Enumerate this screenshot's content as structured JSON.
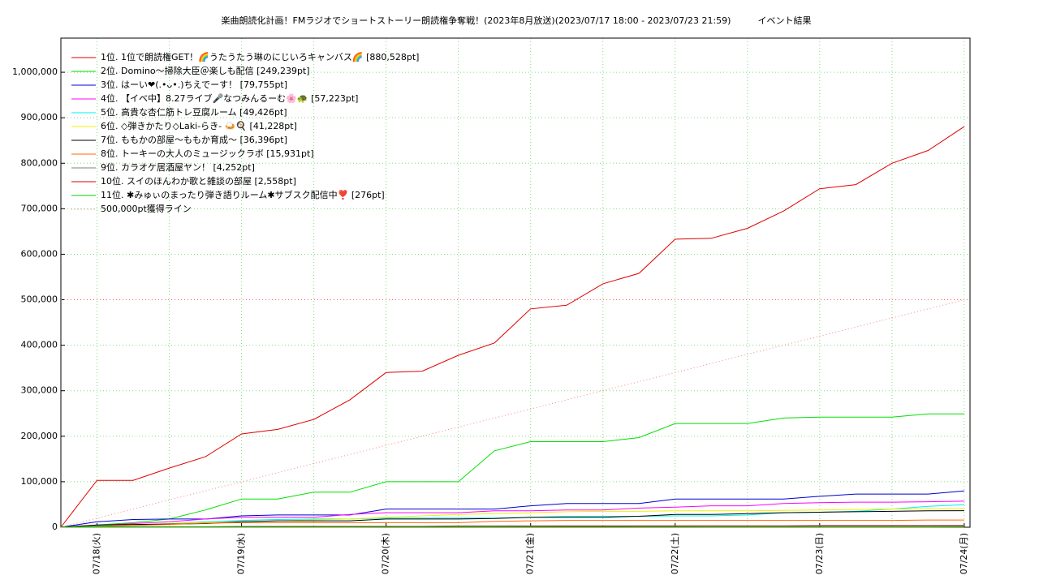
{
  "chart_data": {
    "type": "line",
    "title": "楽曲朗読化計画！FMラジオでショートストーリー朗読権争奪戦！(2023年8月放送)(2023/07/17 18:00 - 2023/07/23 21:59)　　　イベント結果",
    "x": [
      17.75,
      18,
      18.25,
      18.5,
      18.75,
      19,
      19.25,
      19.5,
      19.75,
      20,
      20.25,
      20.5,
      20.75,
      21,
      21.25,
      21.5,
      21.75,
      22,
      22.25,
      22.5,
      22.75,
      23,
      23.25,
      23.5,
      23.75,
      24
    ],
    "xlim": [
      17.75,
      24.04
    ],
    "xticks": [
      {
        "value": 18,
        "label": "07/18(火)"
      },
      {
        "value": 19,
        "label": "07/19(水)"
      },
      {
        "value": 20,
        "label": "07/20(木)"
      },
      {
        "value": 21,
        "label": "07/21(金)"
      },
      {
        "value": 22,
        "label": "07/22(土)"
      },
      {
        "value": 23,
        "label": "07/23(日)"
      },
      {
        "value": 24,
        "label": "07/24(月)"
      }
    ],
    "ylim": [
      0,
      1075000
    ],
    "yticks": [
      0,
      {
        "value": 100000,
        "label": "100,000"
      },
      {
        "value": 200000,
        "label": "200,000"
      },
      {
        "value": 300000,
        "label": "300,000"
      },
      {
        "value": 400000,
        "label": "400,000"
      },
      {
        "value": 500000,
        "label": "500,000"
      },
      {
        "value": 600000,
        "label": "600,000"
      },
      {
        "value": 700000,
        "label": "700,000"
      },
      {
        "value": 800000,
        "label": "800,000"
      },
      {
        "value": 900000,
        "label": "900,000"
      },
      {
        "value": 1000000,
        "label": "1,000,000"
      }
    ],
    "grid": true,
    "legend": "upper left",
    "reference_line": 500000,
    "reference_color": "#ff6060",
    "series": [
      {
        "name": "1位. 1位で朗読権GET！🌈うたうたう琳のにじいろキャンバス🌈 [880,528pt]",
        "color": "#e00000",
        "values": [
          0,
          103000,
          103000,
          130000,
          155000,
          205000,
          215000,
          237000,
          280000,
          340000,
          343000,
          378000,
          405000,
          480000,
          488000,
          535000,
          558000,
          633000,
          635000,
          657000,
          695000,
          744000,
          753000,
          800000,
          828000,
          880528
        ]
      },
      {
        "name": "2位. Domino〜掃除大臣＠楽しも配信 [249,239pt]",
        "color": "#00e000",
        "values": [
          0,
          5000,
          10000,
          18000,
          38000,
          62000,
          62000,
          77000,
          77000,
          100000,
          100000,
          100000,
          168000,
          188000,
          188000,
          188000,
          197000,
          228000,
          228000,
          228000,
          240000,
          242000,
          242000,
          242000,
          249000,
          249239
        ]
      },
      {
        "name": "3位. はーい❤(.•ᴗ•.)ちえでーす！ [79,755pt]",
        "color": "#0000d0",
        "values": [
          0,
          12000,
          17000,
          18000,
          18000,
          25000,
          27000,
          27000,
          27000,
          40000,
          40000,
          40000,
          40000,
          47000,
          52000,
          52000,
          52000,
          62000,
          62000,
          62000,
          62000,
          68000,
          73000,
          73000,
          73000,
          79755
        ]
      },
      {
        "name": "4位. 【イベ中】8.27ライブ🎤なつみんるーむ🌸🐢 [57,223pt]",
        "color": "#ff00ff",
        "values": [
          0,
          4000,
          8000,
          12000,
          18000,
          22000,
          22000,
          22000,
          28000,
          32000,
          32000,
          32000,
          36000,
          36000,
          38000,
          38000,
          42000,
          44000,
          47000,
          47000,
          52000,
          54000,
          55000,
          55000,
          56000,
          57223
        ]
      },
      {
        "name": "5位. 高貴な杏仁筋トレ豆腐ルーム [49,426pt]",
        "color": "#00f0f0",
        "values": [
          0,
          3000,
          5000,
          8000,
          12000,
          15000,
          17000,
          18000,
          18000,
          20000,
          20000,
          20000,
          20000,
          22000,
          24000,
          24000,
          24000,
          25000,
          25000,
          27000,
          32000,
          33000,
          35000,
          40000,
          46000,
          49426
        ]
      },
      {
        "name": "6位. ◇弾きかたり◇Laki-らき- 🍛🍳 [41,228pt]",
        "color": "#f0f000",
        "values": [
          0,
          2000,
          5000,
          8000,
          10000,
          12000,
          14000,
          16000,
          18000,
          22000,
          25000,
          28000,
          30000,
          32000,
          34000,
          35000,
          35000,
          36000,
          36000,
          36000,
          37000,
          38000,
          39000,
          40000,
          41000,
          41228
        ]
      },
      {
        "name": "7位. ももかの部屋〜ももか育成〜 [36,396pt]",
        "color": "#000000",
        "values": [
          0,
          5000,
          6000,
          7000,
          8000,
          12000,
          14000,
          14000,
          14000,
          18000,
          18000,
          18000,
          19000,
          22000,
          22000,
          22000,
          24000,
          28000,
          28000,
          30000,
          32000,
          33000,
          34000,
          35000,
          36000,
          36396
        ]
      },
      {
        "name": "8位. トーキーの大人のミュージックラボ [15,931pt]",
        "color": "#ff6600",
        "values": [
          0,
          2000,
          4000,
          6000,
          9000,
          10000,
          10000,
          10000,
          10000,
          10000,
          10000,
          10000,
          13000,
          14000,
          15000,
          15000,
          15000,
          15000,
          15000,
          15000,
          15000,
          15000,
          15000,
          15000,
          15900,
          15931
        ]
      },
      {
        "name": "9位. カラオケ居酒屋ヤン！ [4,252pt]",
        "color": "#808080",
        "values": [
          0,
          1000,
          1000,
          1000,
          1000,
          2000,
          2000,
          2000,
          2000,
          2000,
          2000,
          3000,
          3000,
          3000,
          3000,
          3000,
          3000,
          3000,
          3000,
          3000,
          3000,
          4000,
          4000,
          4000,
          4000,
          4252
        ]
      },
      {
        "name": "10位. スイのほんわか歌と雑談の部屋 [2,558pt]",
        "color": "#d00000",
        "values": [
          0,
          200,
          400,
          500,
          600,
          800,
          900,
          1000,
          1100,
          1200,
          1300,
          1400,
          1500,
          1600,
          1700,
          1800,
          1900,
          2000,
          2100,
          2200,
          2300,
          2400,
          2450,
          2500,
          2530,
          2558
        ]
      },
      {
        "name": "11位. ✱みゅぃのまったり弾き語りルーム✱サブスク配信中❣️ [276pt]",
        "color": "#00d000",
        "values": [
          0,
          10,
          20,
          30,
          40,
          50,
          60,
          70,
          80,
          90,
          100,
          110,
          120,
          130,
          140,
          150,
          160,
          170,
          180,
          190,
          200,
          220,
          240,
          250,
          260,
          276
        ]
      },
      {
        "name": "500,000pt獲得ライン",
        "color": "#ff8080",
        "dash": "dotted",
        "values": [
          0,
          20000,
          40000,
          60000,
          80000,
          100000,
          120000,
          140000,
          160000,
          180000,
          200000,
          220000,
          240000,
          260000,
          280000,
          300000,
          320000,
          340000,
          360000,
          380000,
          400000,
          420000,
          440000,
          460000,
          480000,
          500000
        ]
      }
    ]
  }
}
